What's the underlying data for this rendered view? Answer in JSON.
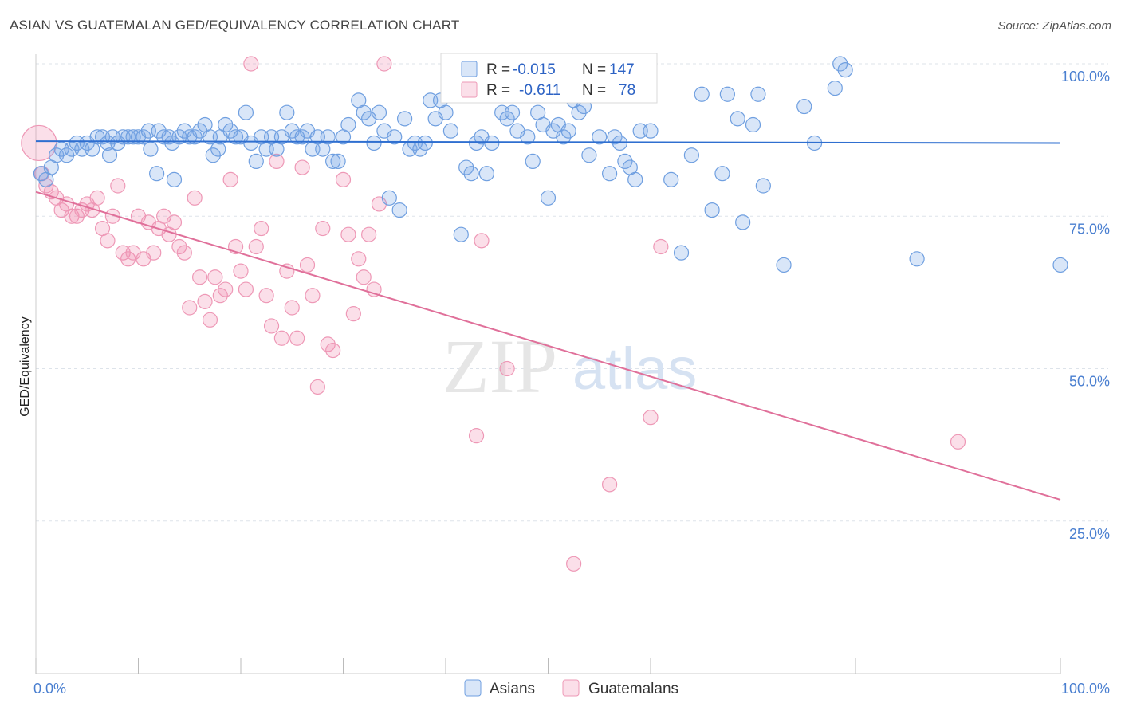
{
  "title": "ASIAN VS GUATEMALAN GED/EQUIVALENCY CORRELATION CHART",
  "source": "Source: ZipAtlas.com",
  "watermark": {
    "zip": "ZIP",
    "atlas": "atlas"
  },
  "colors": {
    "asian_fill": "rgba(120,165,230,0.28)",
    "asian_stroke": "#6f9fe0",
    "asian_line": "#2f6fd0",
    "guat_fill": "rgba(240,140,175,0.28)",
    "guat_stroke": "#ee98b6",
    "guat_line": "#e0709a",
    "grid": "#dde3ea",
    "tick_label": "#4a7fd0"
  },
  "chart_data": {
    "type": "scatter",
    "xlabel": "",
    "ylabel": "GED/Equivalency",
    "xlim": [
      0,
      100
    ],
    "ylim": [
      0,
      100
    ],
    "x_tick_labels": {
      "left": "0.0%",
      "right": "100.0%"
    },
    "y_ticks": [
      {
        "value": 100,
        "label": "100.0%"
      },
      {
        "value": 75,
        "label": "75.0%"
      },
      {
        "value": 50,
        "label": "50.0%"
      },
      {
        "value": 25,
        "label": "25.0%"
      }
    ],
    "grid": true,
    "legend_position": "top-center",
    "series": [
      {
        "name": "Asians",
        "r_label": "R =",
        "r_value": "-0.015",
        "n_label": "N =",
        "n_value": "147",
        "trend": {
          "x": [
            0,
            100
          ],
          "y": [
            87.3,
            87.0
          ]
        },
        "points": [
          [
            0.5,
            82
          ],
          [
            1,
            81
          ],
          [
            1.5,
            83
          ],
          [
            2,
            85
          ],
          [
            2.5,
            86
          ],
          [
            3,
            85
          ],
          [
            3.5,
            86
          ],
          [
            4,
            87
          ],
          [
            4.5,
            86
          ],
          [
            5,
            87
          ],
          [
            5.5,
            86
          ],
          [
            6,
            88
          ],
          [
            6.5,
            88
          ],
          [
            7,
            87
          ],
          [
            7.2,
            85
          ],
          [
            7.5,
            88
          ],
          [
            8,
            87
          ],
          [
            8.5,
            88
          ],
          [
            9,
            88
          ],
          [
            9.5,
            88
          ],
          [
            10,
            88
          ],
          [
            10.5,
            88
          ],
          [
            11,
            89
          ],
          [
            11.2,
            86
          ],
          [
            11.8,
            82
          ],
          [
            12,
            89
          ],
          [
            12.5,
            88
          ],
          [
            13,
            88
          ],
          [
            13.3,
            87
          ],
          [
            13.5,
            81
          ],
          [
            14,
            88
          ],
          [
            14.5,
            89
          ],
          [
            15,
            88
          ],
          [
            15.5,
            88
          ],
          [
            16,
            89
          ],
          [
            16.5,
            90
          ],
          [
            17,
            88
          ],
          [
            17.3,
            85
          ],
          [
            17.8,
            86
          ],
          [
            18,
            88
          ],
          [
            18.5,
            90
          ],
          [
            19,
            89
          ],
          [
            19.5,
            88
          ],
          [
            20,
            88
          ],
          [
            20.5,
            92
          ],
          [
            21,
            87
          ],
          [
            21.5,
            84
          ],
          [
            22,
            88
          ],
          [
            22.5,
            86
          ],
          [
            23,
            88
          ],
          [
            23.5,
            86
          ],
          [
            24,
            88
          ],
          [
            24.5,
            92
          ],
          [
            25,
            89
          ],
          [
            25.5,
            88
          ],
          [
            26,
            88
          ],
          [
            26.5,
            89
          ],
          [
            27,
            86
          ],
          [
            27.5,
            88
          ],
          [
            28,
            86
          ],
          [
            28.5,
            88
          ],
          [
            29,
            84
          ],
          [
            29.5,
            84
          ],
          [
            30,
            88
          ],
          [
            30.5,
            90
          ],
          [
            31.5,
            94
          ],
          [
            32,
            92
          ],
          [
            32.5,
            91
          ],
          [
            33,
            87
          ],
          [
            33.5,
            92
          ],
          [
            34,
            89
          ],
          [
            34.5,
            78
          ],
          [
            35,
            88
          ],
          [
            35.5,
            76
          ],
          [
            36,
            91
          ],
          [
            36.5,
            86
          ],
          [
            37,
            87
          ],
          [
            37.5,
            86
          ],
          [
            38,
            87
          ],
          [
            38.5,
            94
          ],
          [
            39,
            91
          ],
          [
            39.5,
            94
          ],
          [
            40,
            92
          ],
          [
            40.5,
            89
          ],
          [
            41,
            96
          ],
          [
            41.5,
            72
          ],
          [
            42,
            83
          ],
          [
            42.5,
            82
          ],
          [
            43,
            87
          ],
          [
            43.5,
            88
          ],
          [
            44,
            82
          ],
          [
            44.5,
            87
          ],
          [
            45,
            95
          ],
          [
            45.5,
            92
          ],
          [
            46,
            91
          ],
          [
            46.5,
            92
          ],
          [
            47,
            89
          ],
          [
            48,
            88
          ],
          [
            48.5,
            84
          ],
          [
            49,
            92
          ],
          [
            49.5,
            90
          ],
          [
            50,
            78
          ],
          [
            50.5,
            89
          ],
          [
            51,
            90
          ],
          [
            51.5,
            88
          ],
          [
            52,
            89
          ],
          [
            52.5,
            94
          ],
          [
            53,
            92
          ],
          [
            53.5,
            93
          ],
          [
            54,
            85
          ],
          [
            54.5,
            96
          ],
          [
            55,
            88
          ],
          [
            56,
            82
          ],
          [
            56.5,
            88
          ],
          [
            57,
            87
          ],
          [
            57.5,
            84
          ],
          [
            58,
            83
          ],
          [
            58.5,
            81
          ],
          [
            59,
            89
          ],
          [
            59.5,
            97
          ],
          [
            60,
            89
          ],
          [
            62,
            81
          ],
          [
            63,
            69
          ],
          [
            64,
            85
          ],
          [
            65,
            95
          ],
          [
            66,
            76
          ],
          [
            67,
            82
          ],
          [
            67.5,
            95
          ],
          [
            68.5,
            91
          ],
          [
            69,
            74
          ],
          [
            70,
            90
          ],
          [
            70.5,
            95
          ],
          [
            71,
            80
          ],
          [
            73,
            67
          ],
          [
            75,
            93
          ],
          [
            76,
            87
          ],
          [
            78,
            96
          ],
          [
            78.5,
            100
          ],
          [
            79,
            99
          ],
          [
            86,
            68
          ],
          [
            100,
            67
          ]
        ]
      },
      {
        "name": "Guatemalans",
        "r_label": "R =",
        "r_value": "-0.611",
        "n_label": "N =",
        "n_value": "78",
        "trend": {
          "x": [
            0,
            100
          ],
          "y": [
            79,
            28.5
          ]
        },
        "points": [
          [
            0.3,
            87
          ],
          [
            0.6,
            82
          ],
          [
            1,
            80
          ],
          [
            1.5,
            79
          ],
          [
            2,
            78
          ],
          [
            2.5,
            76
          ],
          [
            3,
            77
          ],
          [
            3.5,
            75
          ],
          [
            4,
            75
          ],
          [
            4.5,
            76
          ],
          [
            5,
            77
          ],
          [
            5.5,
            76
          ],
          [
            6,
            78
          ],
          [
            6.5,
            73
          ],
          [
            7,
            71
          ],
          [
            7.5,
            75
          ],
          [
            8,
            80
          ],
          [
            8.5,
            69
          ],
          [
            9,
            68
          ],
          [
            9.5,
            69
          ],
          [
            10,
            75
          ],
          [
            10.5,
            68
          ],
          [
            11,
            74
          ],
          [
            11.5,
            69
          ],
          [
            12,
            73
          ],
          [
            12.5,
            75
          ],
          [
            13,
            72
          ],
          [
            13.5,
            74
          ],
          [
            14,
            70
          ],
          [
            14.5,
            69
          ],
          [
            15,
            60
          ],
          [
            15.5,
            78
          ],
          [
            16,
            65
          ],
          [
            16.5,
            61
          ],
          [
            17,
            58
          ],
          [
            17.5,
            65
          ],
          [
            18,
            62
          ],
          [
            18.5,
            63
          ],
          [
            19,
            81
          ],
          [
            19.5,
            70
          ],
          [
            20,
            66
          ],
          [
            20.5,
            63
          ],
          [
            21,
            100
          ],
          [
            21.5,
            70
          ],
          [
            22,
            73
          ],
          [
            22.5,
            62
          ],
          [
            23,
            57
          ],
          [
            23.5,
            84
          ],
          [
            24,
            55
          ],
          [
            24.5,
            66
          ],
          [
            25,
            60
          ],
          [
            25.5,
            55
          ],
          [
            26,
            83
          ],
          [
            26.5,
            67
          ],
          [
            27,
            62
          ],
          [
            27.5,
            47
          ],
          [
            28,
            73
          ],
          [
            28.5,
            54
          ],
          [
            29,
            53
          ],
          [
            30,
            81
          ],
          [
            30.5,
            72
          ],
          [
            31,
            59
          ],
          [
            31.5,
            68
          ],
          [
            32,
            65
          ],
          [
            32.5,
            72
          ],
          [
            33,
            63
          ],
          [
            33.5,
            77
          ],
          [
            34,
            100
          ],
          [
            43,
            39
          ],
          [
            43.5,
            71
          ],
          [
            46,
            50
          ],
          [
            52.5,
            18
          ],
          [
            56,
            31
          ],
          [
            60,
            42
          ],
          [
            61,
            70
          ],
          [
            90,
            38
          ]
        ]
      }
    ]
  }
}
